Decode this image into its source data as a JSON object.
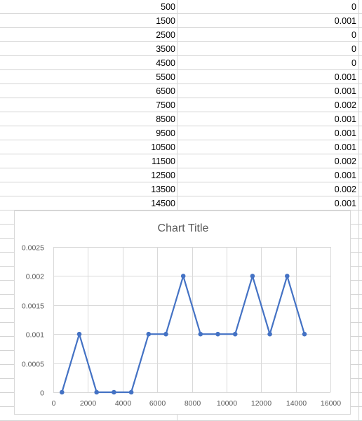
{
  "sheet": {
    "rows": [
      {
        "a": "500",
        "b": "0"
      },
      {
        "a": "1500",
        "b": "0.001"
      },
      {
        "a": "2500",
        "b": "0"
      },
      {
        "a": "3500",
        "b": "0"
      },
      {
        "a": "4500",
        "b": "0"
      },
      {
        "a": "5500",
        "b": "0.001"
      },
      {
        "a": "6500",
        "b": "0.001"
      },
      {
        "a": "7500",
        "b": "0.002"
      },
      {
        "a": "8500",
        "b": "0.001"
      },
      {
        "a": "9500",
        "b": "0.001"
      },
      {
        "a": "10500",
        "b": "0.001"
      },
      {
        "a": "11500",
        "b": "0.002"
      },
      {
        "a": "12500",
        "b": "0.001"
      },
      {
        "a": "13500",
        "b": "0.002"
      },
      {
        "a": "14500",
        "b": "0.001"
      }
    ]
  },
  "colors": {
    "series": "#4472c4",
    "gridline": "#d9d9d9",
    "cell_border": "#d4d4d4",
    "text": "#595959"
  },
  "chart_data": {
    "type": "line",
    "title": "Chart Title",
    "x": [
      500,
      1500,
      2500,
      3500,
      4500,
      5500,
      6500,
      7500,
      8500,
      9500,
      10500,
      11500,
      12500,
      13500,
      14500
    ],
    "series": [
      {
        "values": [
          0,
          0.001,
          0,
          0,
          0,
          0.001,
          0.001,
          0.002,
          0.001,
          0.001,
          0.001,
          0.002,
          0.001,
          0.002,
          0.001
        ]
      }
    ],
    "xlim": [
      0,
      16000
    ],
    "ylim": [
      0,
      0.0025
    ],
    "x_ticks": [
      0,
      2000,
      4000,
      6000,
      8000,
      10000,
      12000,
      14000,
      16000
    ],
    "y_ticks": [
      0,
      0.0005,
      0.001,
      0.0015,
      0.002,
      0.0025
    ],
    "x_tick_labels": [
      "0",
      "2000",
      "4000",
      "6000",
      "8000",
      "10000",
      "12000",
      "14000",
      "16000"
    ],
    "y_tick_labels": [
      "0",
      "0.0005",
      "0.001",
      "0.0015",
      "0.002",
      "0.0025"
    ],
    "markers": true,
    "grid": true,
    "legend": "none"
  }
}
